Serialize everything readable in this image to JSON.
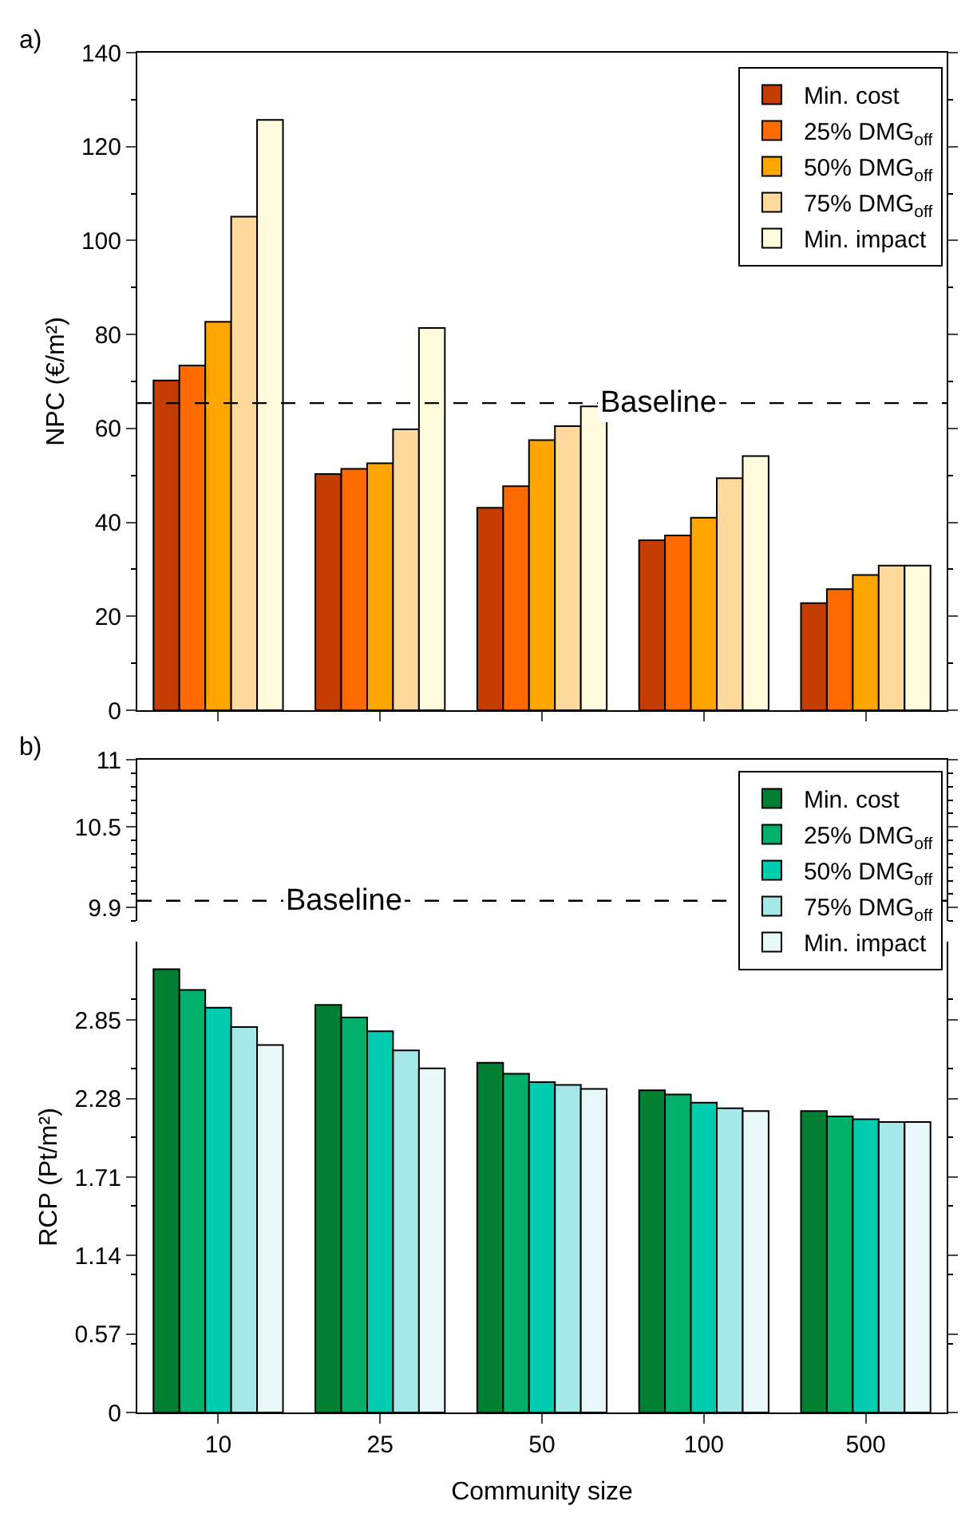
{
  "chart_data": [
    {
      "type": "bar",
      "annotations": [
        "a)"
      ],
      "ylabel": "NPC (€/m²)",
      "categories": [
        "10",
        "25",
        "50",
        "100",
        "500"
      ],
      "series": [
        {
          "name": "Min. cost",
          "color": "#c43c00",
          "values": [
            70.2,
            50.3,
            43.1,
            36.2,
            22.8
          ]
        },
        {
          "name": "25% DMG$_{off}$",
          "color": "#ff6a00",
          "values": [
            73.4,
            51.4,
            47.7,
            37.2,
            25.8
          ]
        },
        {
          "name": "50% DMG$_{off}$",
          "color": "#ffa500",
          "values": [
            82.7,
            52.6,
            57.5,
            41.0,
            28.8
          ]
        },
        {
          "name": "75% DMG$_{off}$",
          "color": "#fdd99b",
          "values": [
            105.1,
            59.8,
            60.5,
            49.4,
            30.8
          ]
        },
        {
          "name": "Min. impact",
          "color": "#fffbdc",
          "values": [
            125.7,
            81.4,
            64.7,
            54.1,
            30.8
          ]
        }
      ],
      "ylim": [
        0,
        140
      ],
      "yticks": [
        0,
        20,
        40,
        60,
        80,
        100,
        120,
        140
      ],
      "ref_lines": [
        {
          "axis": "y",
          "value": 65.4,
          "label": "Baseline",
          "line_style": "dashed",
          "color": "#000000"
        }
      ],
      "legend": "top right",
      "grid": false,
      "tick_labels": "y"
    },
    {
      "type": "bar",
      "annotations": [
        "b)"
      ],
      "categories": [
        "10",
        "25",
        "50",
        "100",
        "500"
      ],
      "ylim": [
        9.8,
        11
      ],
      "yticks": [
        9.9,
        10.5,
        11
      ],
      "ref_lines": [
        {
          "axis": "y",
          "value": 9.95,
          "label": "Baseline",
          "line_style": "dashed",
          "color": "#000000"
        }
      ],
      "grid": false,
      "tick_labels": "y"
    },
    {
      "type": "bar",
      "xlabel": "Community size",
      "ylabel": "RCP (Pt/m²)",
      "categories": [
        "10",
        "25",
        "50",
        "100",
        "500"
      ],
      "series": [
        {
          "name": "Min. cost",
          "color": "#007f33",
          "values": [
            3.22,
            2.96,
            2.54,
            2.34,
            2.19
          ]
        },
        {
          "name": "25% DMG$_{off}$",
          "color": "#00b06b",
          "values": [
            3.07,
            2.87,
            2.46,
            2.31,
            2.15
          ]
        },
        {
          "name": "50% DMG$_{off}$",
          "color": "#00ccb0",
          "values": [
            2.94,
            2.77,
            2.4,
            2.25,
            2.13
          ]
        },
        {
          "name": "75% DMG$_{off}$",
          "color": "#a5e8e8",
          "values": [
            2.8,
            2.63,
            2.38,
            2.21,
            2.11
          ]
        },
        {
          "name": "Min. impact",
          "color": "#e8f8f8",
          "values": [
            2.67,
            2.5,
            2.35,
            2.19,
            2.11
          ]
        }
      ],
      "ylim": [
        0,
        3.42
      ],
      "yticks": [
        0,
        0.57,
        1.14,
        1.71,
        2.28,
        2.85
      ],
      "legend": "top right",
      "grid": false
    }
  ]
}
